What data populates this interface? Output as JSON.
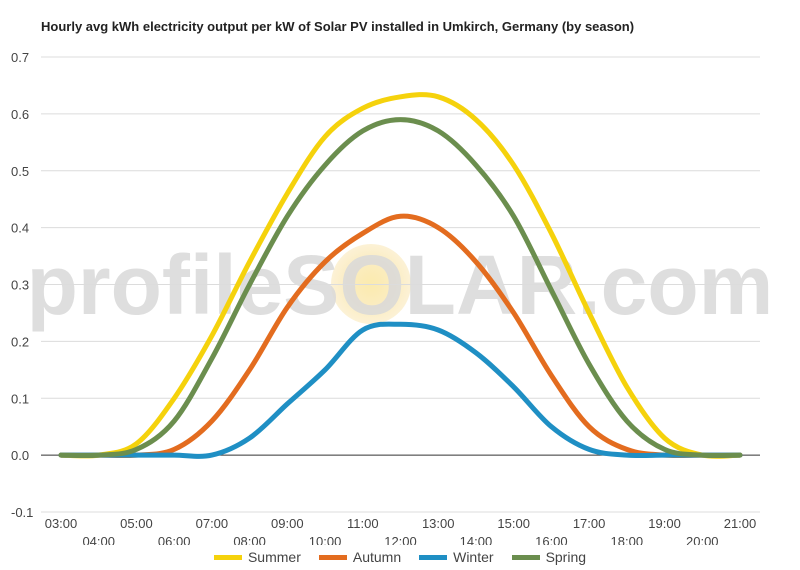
{
  "chart_data": {
    "type": "line",
    "title": "Hourly avg kWh electricity output per kW of Solar PV installed in Umkirch, Germany (by season)",
    "watermark": "profileSOLAR.com",
    "xlabel": "",
    "ylabel": "",
    "ylim": [
      -0.1,
      0.7
    ],
    "yticks": [
      "0.7",
      "0.6",
      "0.5",
      "0.4",
      "0.3",
      "0.2",
      "0.1",
      "0.0",
      "-0.1"
    ],
    "grid": true,
    "legend_position": "bottom",
    "x": [
      "03:00",
      "04:00",
      "05:00",
      "06:00",
      "07:00",
      "08:00",
      "09:00",
      "10:00",
      "11:00",
      "12:00",
      "13:00",
      "14:00",
      "15:00",
      "16:00",
      "17:00",
      "18:00",
      "19:00",
      "20:00",
      "21:00"
    ],
    "series": [
      {
        "name": "Summer",
        "color": "#f5d20c",
        "values": [
          0.0,
          0.0,
          0.02,
          0.1,
          0.21,
          0.34,
          0.46,
          0.56,
          0.61,
          0.63,
          0.63,
          0.59,
          0.51,
          0.39,
          0.25,
          0.12,
          0.03,
          0.0,
          0.0
        ]
      },
      {
        "name": "Autumn",
        "color": "#e36c1f",
        "values": [
          0.0,
          0.0,
          0.0,
          0.01,
          0.06,
          0.15,
          0.26,
          0.34,
          0.39,
          0.42,
          0.4,
          0.34,
          0.25,
          0.14,
          0.05,
          0.01,
          0.0,
          0.0,
          0.0
        ]
      },
      {
        "name": "Winter",
        "color": "#1f8fc4",
        "values": [
          0.0,
          0.0,
          0.0,
          0.0,
          0.0,
          0.03,
          0.09,
          0.15,
          0.22,
          0.23,
          0.22,
          0.18,
          0.12,
          0.05,
          0.01,
          0.0,
          0.0,
          0.0,
          0.0
        ]
      },
      {
        "name": "Spring",
        "color": "#6b8e4e",
        "values": [
          0.0,
          0.0,
          0.01,
          0.06,
          0.17,
          0.3,
          0.42,
          0.51,
          0.57,
          0.59,
          0.57,
          0.51,
          0.42,
          0.29,
          0.16,
          0.06,
          0.01,
          0.0,
          0.0
        ]
      }
    ]
  }
}
